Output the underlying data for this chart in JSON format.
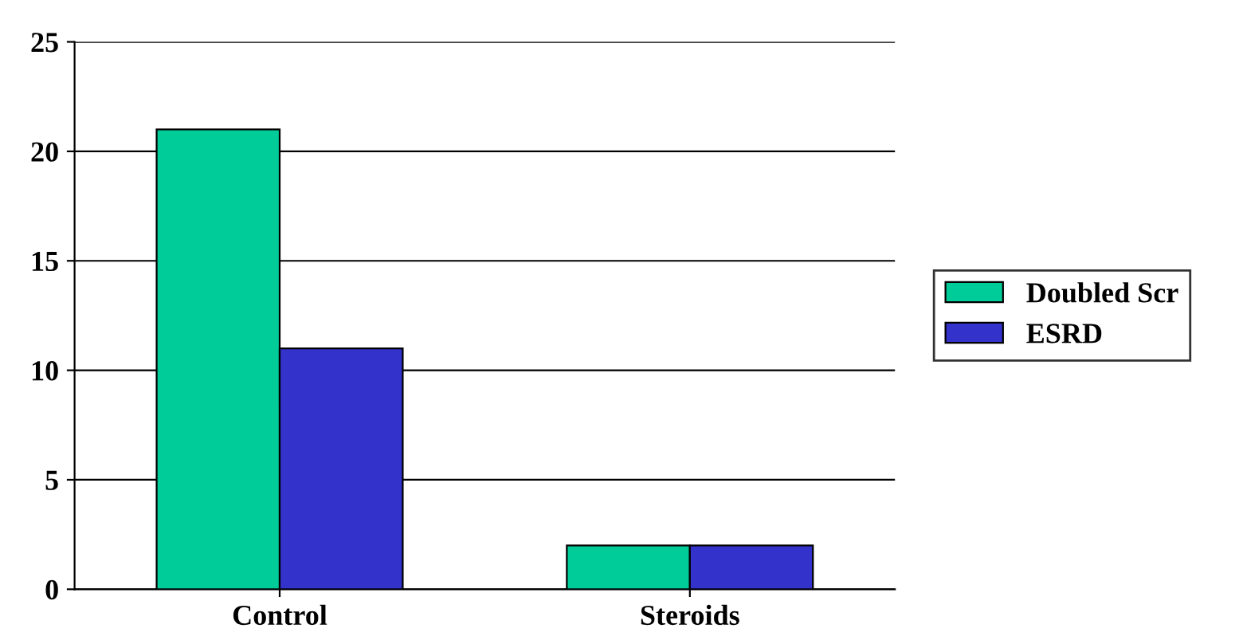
{
  "chart_data": {
    "type": "bar",
    "categories": [
      "Control",
      "Steroids"
    ],
    "series": [
      {
        "name": "Doubled Scr",
        "color": "#00cc99",
        "values": [
          21,
          2
        ]
      },
      {
        "name": "ESRD",
        "color": "#3333cc",
        "values": [
          11,
          2
        ]
      }
    ],
    "ylim": [
      0,
      25
    ],
    "yticks": [
      0,
      5,
      10,
      15,
      20,
      25
    ],
    "grid": "y",
    "legend": "right"
  }
}
